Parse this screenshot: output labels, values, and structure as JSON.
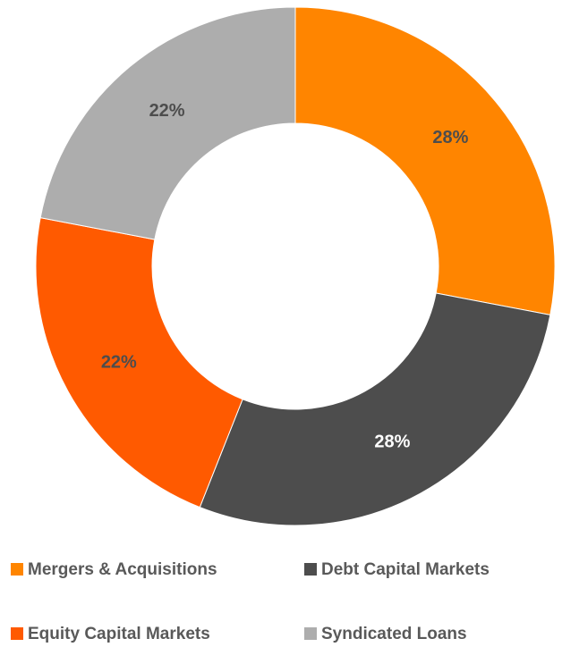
{
  "chart_data": {
    "type": "donut",
    "categories": [
      "Mergers & Acquisitions",
      "Debt Capital Markets",
      "Equity Capital Markets",
      "Syndicated Loans"
    ],
    "values": [
      28,
      28,
      22,
      22
    ],
    "value_labels": [
      "28%",
      "28%",
      "22%",
      "22%"
    ],
    "colors": [
      "#ff8500",
      "#4d4d4d",
      "#ff5a00",
      "#adadad"
    ],
    "label_colors": [
      "#4d4d4d",
      "#ffffff",
      "#4d4d4d",
      "#4d4d4d"
    ],
    "legend": "bottom"
  }
}
